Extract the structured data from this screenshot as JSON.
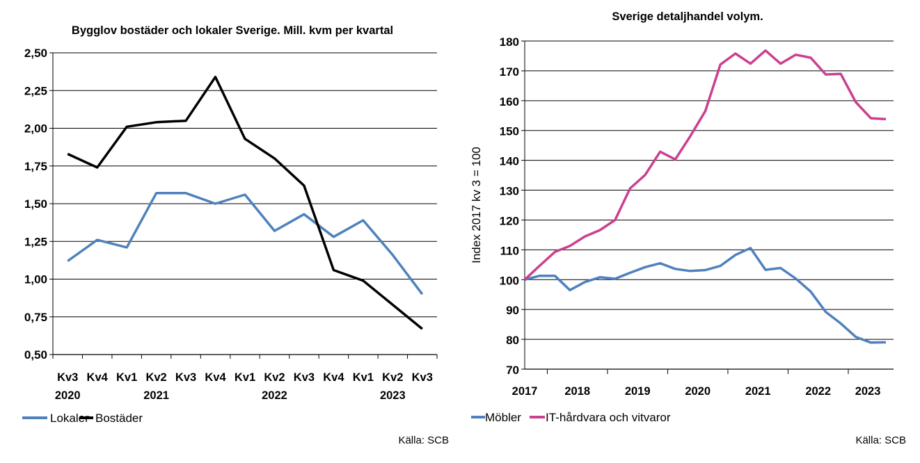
{
  "chart_data": [
    {
      "type": "line",
      "title": "Bygglov bostäder och lokaler Sverige. Mill. kvm per kvartal",
      "xlabel": "",
      "ylabel": "",
      "ylim": [
        0.5,
        2.5
      ],
      "yticks": [
        "2,50",
        "2,25",
        "2,00",
        "1,75",
        "1,50",
        "1,25",
        "1,00",
        "0,75",
        "0,50"
      ],
      "categories": [
        "Kv3",
        "Kv4",
        "Kv1",
        "Kv2",
        "Kv3",
        "Kv4",
        "Kv1",
        "Kv2",
        "Kv3",
        "Kv4",
        "Kv1",
        "Kv2",
        "Kv3"
      ],
      "year_labels": [
        {
          "label": "2020",
          "index": 0
        },
        {
          "label": "2021",
          "index": 3
        },
        {
          "label": "2022",
          "index": 7
        },
        {
          "label": "2023",
          "index": 11
        }
      ],
      "grid": true,
      "legend_position": "bottom-left",
      "series": [
        {
          "name": "Lokaler",
          "color": "#4f81bd",
          "values": [
            1.12,
            1.26,
            1.21,
            1.57,
            1.57,
            1.5,
            1.56,
            1.32,
            1.43,
            1.28,
            1.39,
            1.16,
            0.9
          ]
        },
        {
          "name": "Bostäder",
          "color": "#000000",
          "values": [
            1.83,
            1.74,
            2.01,
            2.04,
            2.05,
            2.34,
            1.93,
            1.8,
            1.62,
            1.06,
            0.99,
            0.83,
            0.67
          ]
        }
      ],
      "source": "Källa: SCB"
    },
    {
      "type": "line",
      "title": "Sverige detaljhandel volym.",
      "xlabel": "",
      "ylabel": "Index 2017 kv 3 = 100",
      "ylim": [
        70,
        180
      ],
      "yticks": [
        "180",
        "170",
        "160",
        "150",
        "140",
        "130",
        "120",
        "110",
        "100",
        "90",
        "80",
        "70"
      ],
      "year_labels": [
        {
          "label": "2017",
          "index": 0
        },
        {
          "label": "2018",
          "index": 3.5
        },
        {
          "label": "2019",
          "index": 7.5
        },
        {
          "label": "2020",
          "index": 11.5
        },
        {
          "label": "2021",
          "index": 15.5
        },
        {
          "label": "2022",
          "index": 19.5
        },
        {
          "label": "2023",
          "index": 22.8
        }
      ],
      "grid": true,
      "legend_position": "bottom-left",
      "series": [
        {
          "name": "Möbler",
          "color": "#4f81bd",
          "values": [
            100,
            101.3,
            101.3,
            96.5,
            99.2,
            100.8,
            100.3,
            102.3,
            104.2,
            105.5,
            103.6,
            102.9,
            103.2,
            104.6,
            108.3,
            110.6,
            103.3,
            103.9,
            100.4,
            96,
            89.2,
            85.3,
            80.8,
            78.9,
            79
          ]
        },
        {
          "name": "IT-hårdvara och vitvaror",
          "color": "#cc3f8f",
          "values": [
            100,
            104.7,
            109.3,
            111.3,
            114.5,
            116.6,
            120,
            130.6,
            135.1,
            142.9,
            140.3,
            148.1,
            156.5,
            172.1,
            175.8,
            172.4,
            176.8,
            172.4,
            175.4,
            174.4,
            168.8,
            169,
            159.5,
            154.1,
            153.8
          ]
        }
      ],
      "source": "Källa: SCB"
    }
  ]
}
